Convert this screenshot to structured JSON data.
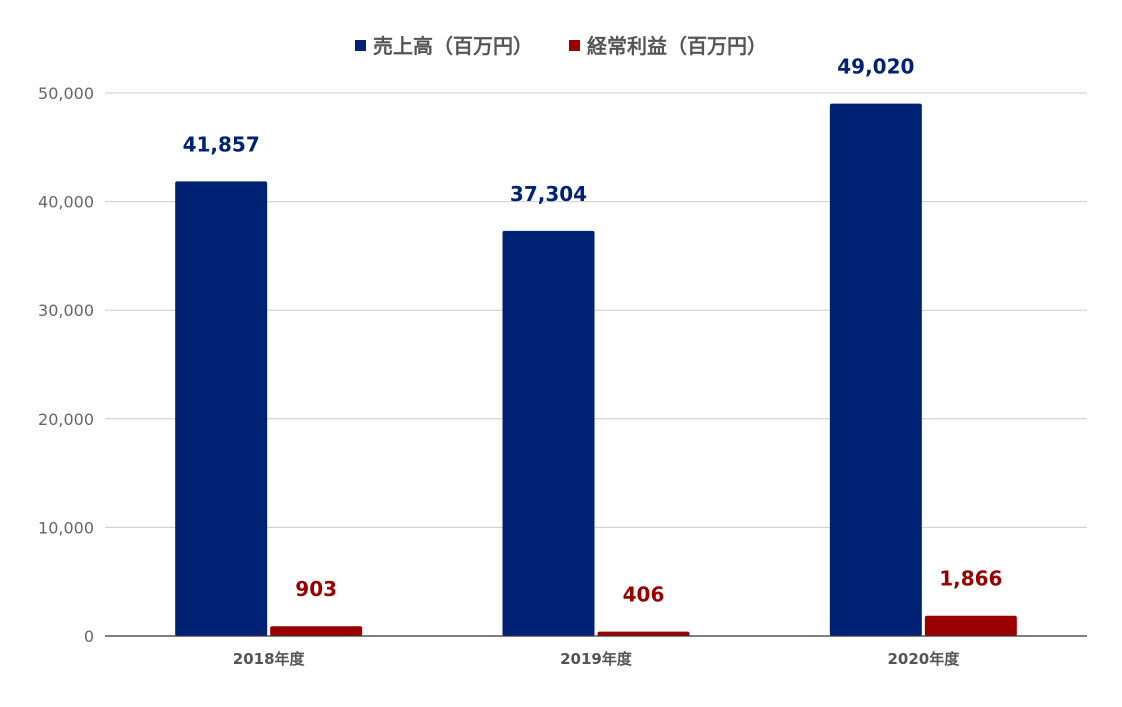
{
  "chart_data": {
    "type": "bar",
    "categories": [
      "2018年度",
      "2019年度",
      "2020年度"
    ],
    "series": [
      {
        "name": "売上高（百万円）",
        "values": [
          41857,
          37304,
          49020
        ],
        "labels": [
          "41,857",
          "37,304",
          "49,020"
        ]
      },
      {
        "name": "経常利益（百万円）",
        "values": [
          903,
          406,
          1866
        ],
        "labels": [
          "903",
          "406",
          "1,866"
        ]
      }
    ],
    "title": "",
    "xlabel": "",
    "ylabel": "",
    "ylim": [
      0,
      50000
    ],
    "yticks": [
      0,
      10000,
      20000,
      30000,
      40000,
      50000
    ],
    "ytick_labels": [
      "0",
      "10,000",
      "20,000",
      "30,000",
      "40,000",
      "50,000"
    ],
    "grid": true,
    "legend": "top-center"
  },
  "colors": {
    "series": [
      "#002275",
      "#9a0000"
    ],
    "grid": "#cccccc",
    "axis": "#333333"
  }
}
